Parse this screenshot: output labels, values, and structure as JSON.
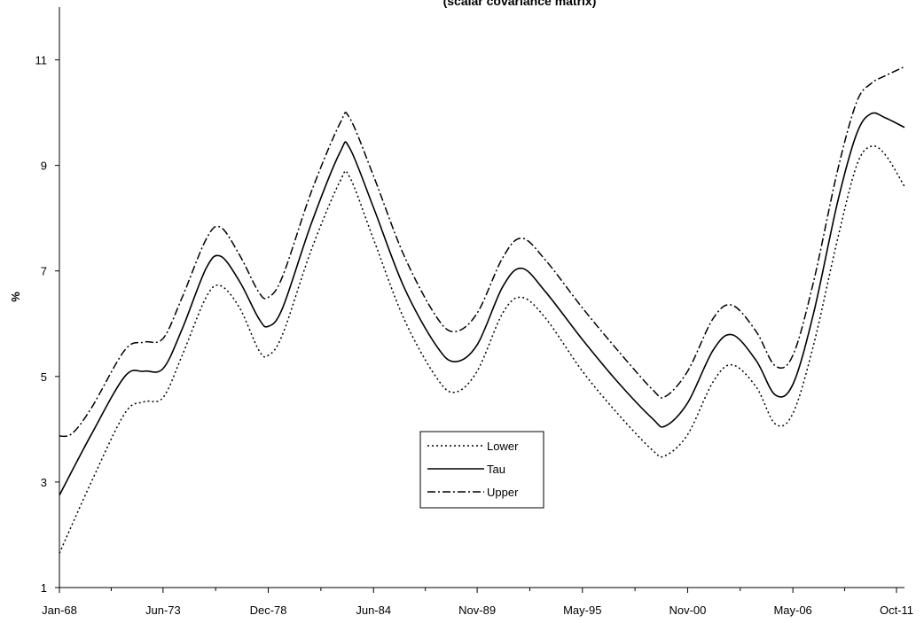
{
  "chart_data": {
    "type": "line",
    "title": "(scalar covariance matrix)",
    "ylabel": "%",
    "xlabel": "",
    "ylim": [
      1,
      12
    ],
    "yticks": [
      1,
      3,
      5,
      7,
      9,
      11
    ],
    "xlim": [
      "1968-01",
      "2012-03"
    ],
    "xticks": [
      {
        "date": "1968-01",
        "label": "Jan-68"
      },
      {
        "date": "1973-06",
        "label": "Jun-73"
      },
      {
        "date": "1978-12",
        "label": "Dec-78"
      },
      {
        "date": "1984-06",
        "label": "Jun-84"
      },
      {
        "date": "1989-11",
        "label": "Nov-89"
      },
      {
        "date": "1995-05",
        "label": "May-95"
      },
      {
        "date": "2000-11",
        "label": "Nov-00"
      },
      {
        "date": "2006-05",
        "label": "May-06"
      },
      {
        "date": "2011-10",
        "label": "Oct-11"
      }
    ],
    "grid": false,
    "legend_position": "center-bottom",
    "series": [
      {
        "name": "Lower",
        "style": "dotted",
        "color": "#000000",
        "points": [
          [
            "1968-01",
            1.65
          ],
          [
            "1969-09",
            3.0
          ],
          [
            "1971-06",
            4.3
          ],
          [
            "1972-06",
            4.52
          ],
          [
            "1973-06",
            4.6
          ],
          [
            "1974-06",
            5.4
          ],
          [
            "1975-09",
            6.5
          ],
          [
            "1976-06",
            6.72
          ],
          [
            "1977-06",
            6.3
          ],
          [
            "1978-06",
            5.5
          ],
          [
            "1978-12",
            5.4
          ],
          [
            "1979-09",
            5.8
          ],
          [
            "1981-03",
            7.4
          ],
          [
            "1982-09",
            8.7
          ],
          [
            "1983-03",
            8.78
          ],
          [
            "1984-06",
            7.6
          ],
          [
            "1986-01",
            6.1
          ],
          [
            "1987-09",
            5.0
          ],
          [
            "1988-09",
            4.7
          ],
          [
            "1989-11",
            5.1
          ],
          [
            "1991-03",
            6.2
          ],
          [
            "1992-03",
            6.5
          ],
          [
            "1993-06",
            6.1
          ],
          [
            "1995-05",
            5.1
          ],
          [
            "1997-03",
            4.3
          ],
          [
            "1999-01",
            3.6
          ],
          [
            "1999-09",
            3.5
          ],
          [
            "2000-11",
            3.9
          ],
          [
            "2002-03",
            4.9
          ],
          [
            "2003-03",
            5.22
          ],
          [
            "2004-06",
            4.8
          ],
          [
            "2005-06",
            4.1
          ],
          [
            "2006-05",
            4.3
          ],
          [
            "2007-06",
            5.6
          ],
          [
            "2008-09",
            7.6
          ],
          [
            "2009-09",
            9.0
          ],
          [
            "2010-06",
            9.36
          ],
          [
            "2011-03",
            9.2
          ],
          [
            "2012-03",
            8.6
          ]
        ]
      },
      {
        "name": "Tau",
        "style": "solid",
        "color": "#000000",
        "points": [
          [
            "1968-01",
            2.75
          ],
          [
            "1969-09",
            3.9
          ],
          [
            "1971-06",
            5.0
          ],
          [
            "1972-06",
            5.1
          ],
          [
            "1973-06",
            5.15
          ],
          [
            "1974-06",
            5.9
          ],
          [
            "1975-09",
            7.05
          ],
          [
            "1976-06",
            7.28
          ],
          [
            "1977-06",
            6.8
          ],
          [
            "1978-06",
            6.1
          ],
          [
            "1978-12",
            5.95
          ],
          [
            "1979-09",
            6.3
          ],
          [
            "1981-03",
            7.9
          ],
          [
            "1982-09",
            9.25
          ],
          [
            "1983-03",
            9.33
          ],
          [
            "1984-06",
            8.2
          ],
          [
            "1986-01",
            6.7
          ],
          [
            "1987-09",
            5.6
          ],
          [
            "1988-09",
            5.28
          ],
          [
            "1989-11",
            5.6
          ],
          [
            "1991-03",
            6.7
          ],
          [
            "1992-03",
            7.05
          ],
          [
            "1993-06",
            6.6
          ],
          [
            "1995-05",
            5.7
          ],
          [
            "1997-03",
            4.9
          ],
          [
            "1999-01",
            4.2
          ],
          [
            "1999-09",
            4.06
          ],
          [
            "2000-11",
            4.5
          ],
          [
            "2002-03",
            5.5
          ],
          [
            "2003-03",
            5.79
          ],
          [
            "2004-06",
            5.3
          ],
          [
            "2005-06",
            4.65
          ],
          [
            "2006-05",
            4.85
          ],
          [
            "2007-06",
            6.2
          ],
          [
            "2008-09",
            8.3
          ],
          [
            "2009-09",
            9.6
          ],
          [
            "2010-06",
            9.98
          ],
          [
            "2011-03",
            9.9
          ],
          [
            "2012-03",
            9.72
          ]
        ]
      },
      {
        "name": "Upper",
        "style": "dash-dot",
        "color": "#000000",
        "points": [
          [
            "1968-01",
            3.87
          ],
          [
            "1968-09",
            3.92
          ],
          [
            "1969-09",
            4.4
          ],
          [
            "1971-06",
            5.5
          ],
          [
            "1972-06",
            5.65
          ],
          [
            "1973-06",
            5.72
          ],
          [
            "1974-06",
            6.5
          ],
          [
            "1975-09",
            7.6
          ],
          [
            "1976-06",
            7.83
          ],
          [
            "1977-06",
            7.3
          ],
          [
            "1978-06",
            6.6
          ],
          [
            "1978-12",
            6.5
          ],
          [
            "1979-09",
            6.9
          ],
          [
            "1981-03",
            8.5
          ],
          [
            "1982-09",
            9.8
          ],
          [
            "1983-03",
            9.9
          ],
          [
            "1984-06",
            8.8
          ],
          [
            "1986-01",
            7.3
          ],
          [
            "1987-09",
            6.15
          ],
          [
            "1988-09",
            5.85
          ],
          [
            "1989-11",
            6.2
          ],
          [
            "1991-03",
            7.25
          ],
          [
            "1992-03",
            7.62
          ],
          [
            "1993-06",
            7.2
          ],
          [
            "1995-05",
            6.3
          ],
          [
            "1997-03",
            5.5
          ],
          [
            "1999-01",
            4.75
          ],
          [
            "1999-09",
            4.62
          ],
          [
            "2000-11",
            5.1
          ],
          [
            "2002-03",
            6.1
          ],
          [
            "2003-03",
            6.35
          ],
          [
            "2004-06",
            5.85
          ],
          [
            "2005-06",
            5.2
          ],
          [
            "2006-05",
            5.4
          ],
          [
            "2007-06",
            6.8
          ],
          [
            "2008-09",
            8.9
          ],
          [
            "2009-09",
            10.2
          ],
          [
            "2010-06",
            10.55
          ],
          [
            "2011-03",
            10.7
          ],
          [
            "2012-03",
            10.87
          ]
        ]
      }
    ]
  }
}
